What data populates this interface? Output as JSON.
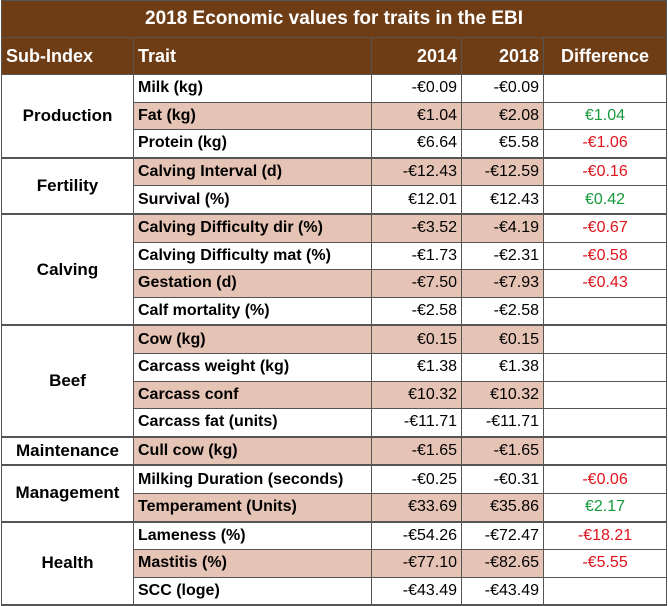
{
  "title": "2018 Economic values for traits in the EBI",
  "columns": [
    "Sub-Index",
    "Trait",
    "2014",
    "2018",
    "Difference"
  ],
  "colors": {
    "header_bg": "#6e3d15",
    "highlight": "#e6c4b5",
    "positive": "#169a3c",
    "negative": "#e0141c"
  },
  "rows": [
    {
      "subindex": "Production",
      "span": 3,
      "trait": "Milk (kg)",
      "v2014": "-€0.09",
      "v2018": "-€0.09",
      "diff": "",
      "hl": false,
      "sign": ""
    },
    {
      "subindex": "",
      "trait": "Fat (kg)",
      "v2014": "€1.04",
      "v2018": "€2.08",
      "diff": "€1.04",
      "hl": true,
      "sign": "pos"
    },
    {
      "subindex": "",
      "trait": "Protein (kg)",
      "v2014": "€6.64",
      "v2018": "€5.58",
      "diff": "-€1.06",
      "hl": false,
      "sign": "neg"
    },
    {
      "subindex": "Fertility",
      "span": 2,
      "trait": "Calving Interval (d)",
      "v2014": "-€12.43",
      "v2018": "-€12.59",
      "diff": "-€0.16",
      "hl": true,
      "sign": "neg"
    },
    {
      "subindex": "",
      "trait": "Survival (%)",
      "v2014": "€12.01",
      "v2018": "€12.43",
      "diff": "€0.42",
      "hl": false,
      "sign": "pos"
    },
    {
      "subindex": "Calving",
      "span": 4,
      "trait": "Calving Difficulty dir (%)",
      "v2014": "-€3.52",
      "v2018": "-€4.19",
      "diff": "-€0.67",
      "hl": true,
      "sign": "neg"
    },
    {
      "subindex": "",
      "trait": "Calving Difficulty mat (%)",
      "v2014": "-€1.73",
      "v2018": "-€2.31",
      "diff": "-€0.58",
      "hl": false,
      "sign": "neg"
    },
    {
      "subindex": "",
      "trait": "Gestation (d)",
      "v2014": "-€7.50",
      "v2018": "-€7.93",
      "diff": "-€0.43",
      "hl": true,
      "sign": "neg"
    },
    {
      "subindex": "",
      "trait": "Calf mortality (%)",
      "v2014": "-€2.58",
      "v2018": "-€2.58",
      "diff": "",
      "hl": false,
      "sign": ""
    },
    {
      "subindex": "Beef",
      "span": 4,
      "trait": "Cow (kg)",
      "v2014": "€0.15",
      "v2018": "€0.15",
      "diff": "",
      "hl": true,
      "sign": ""
    },
    {
      "subindex": "",
      "trait": "Carcass weight (kg)",
      "v2014": "€1.38",
      "v2018": "€1.38",
      "diff": "",
      "hl": false,
      "sign": ""
    },
    {
      "subindex": "",
      "trait": "Carcass conf",
      "v2014": "€10.32",
      "v2018": "€10.32",
      "diff": "",
      "hl": true,
      "sign": ""
    },
    {
      "subindex": "",
      "trait": "Carcass fat (units)",
      "v2014": "-€11.71",
      "v2018": "-€11.71",
      "diff": "",
      "hl": false,
      "sign": ""
    },
    {
      "subindex": "Maintenance",
      "span": 1,
      "trait": "Cull cow (kg)",
      "v2014": "-€1.65",
      "v2018": "-€1.65",
      "diff": "",
      "hl": true,
      "sign": ""
    },
    {
      "subindex": "Management",
      "span": 2,
      "trait": "Milking Duration (seconds)",
      "v2014": "-€0.25",
      "v2018": "-€0.31",
      "diff": "-€0.06",
      "hl": false,
      "sign": "neg"
    },
    {
      "subindex": "",
      "trait": "Temperament (Units)",
      "v2014": "€33.69",
      "v2018": "€35.86",
      "diff": "€2.17",
      "hl": true,
      "sign": "pos"
    },
    {
      "subindex": "Health",
      "span": 3,
      "trait": "Lameness (%)",
      "v2014": "-€54.26",
      "v2018": "-€72.47",
      "diff": "-€18.21",
      "hl": false,
      "sign": "neg"
    },
    {
      "subindex": "",
      "trait": "Mastitis (%)",
      "v2014": "-€77.10",
      "v2018": "-€82.65",
      "diff": "-€5.55",
      "hl": true,
      "sign": "neg"
    },
    {
      "subindex": "",
      "trait": "SCC (loge)",
      "v2014": "-€43.49",
      "v2018": "-€43.49",
      "diff": "",
      "hl": false,
      "sign": ""
    }
  ]
}
